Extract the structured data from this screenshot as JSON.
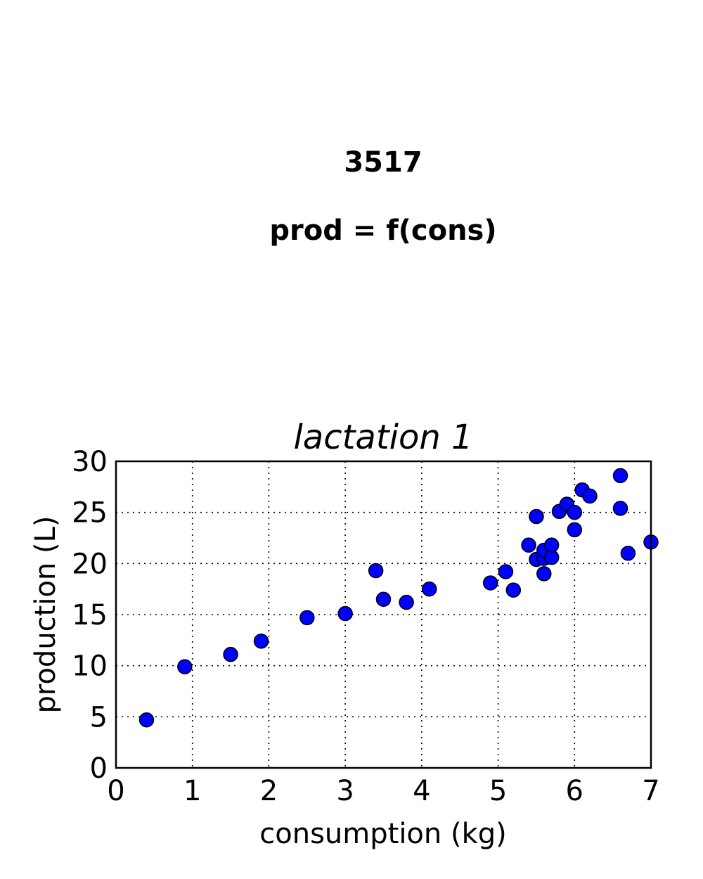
{
  "figure": {
    "title_line1": "3517",
    "title_line2": "prod = f(cons)"
  },
  "chart_data": {
    "type": "scatter",
    "title": "lactation 1",
    "xlabel": "consumption (kg)",
    "ylabel": "production (L)",
    "xlim": [
      0,
      7
    ],
    "ylim": [
      0,
      30
    ],
    "xticks": [
      "0",
      "1",
      "2",
      "3",
      "4",
      "5",
      "6",
      "7"
    ],
    "yticks": [
      "0",
      "5",
      "10",
      "15",
      "20",
      "25",
      "30"
    ],
    "grid": true,
    "marker_color": "#0000ff",
    "x": [
      0.4,
      0.9,
      1.5,
      1.9,
      2.5,
      3.0,
      3.4,
      3.5,
      3.8,
      4.1,
      4.9,
      5.1,
      5.2,
      5.4,
      5.5,
      5.5,
      5.6,
      5.6,
      5.6,
      5.7,
      5.7,
      5.8,
      5.9,
      6.0,
      6.0,
      6.1,
      6.2,
      6.6,
      6.6,
      6.7,
      7.0
    ],
    "y": [
      4.7,
      9.9,
      11.1,
      12.4,
      14.7,
      15.1,
      19.3,
      16.5,
      16.2,
      17.5,
      18.1,
      19.2,
      17.4,
      21.8,
      20.4,
      24.6,
      19.0,
      20.5,
      21.3,
      20.6,
      21.8,
      25.1,
      25.8,
      25.0,
      23.3,
      27.2,
      26.6,
      28.6,
      25.4,
      21.0,
      22.1
    ]
  }
}
